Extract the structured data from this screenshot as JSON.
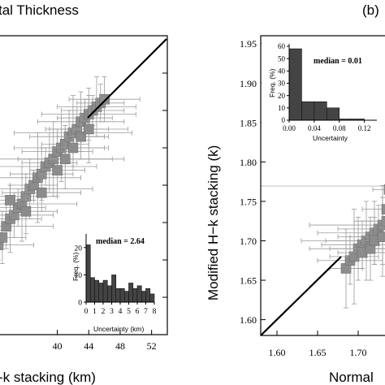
{
  "chart_data": [
    {
      "type": "scatter",
      "title": "tal Thickness",
      "xlabel": "-k stacking (km)",
      "ylabel": "",
      "xlim": [
        32.5,
        54
      ],
      "ylim": [
        15,
        55
      ],
      "xticks": [
        "40",
        "44",
        "48",
        "52"
      ],
      "xtick_values": [
        40,
        44,
        48,
        52
      ],
      "reference_line": "y = x",
      "grid": false,
      "points": [
        {
          "x": 32.5,
          "y": 27.0,
          "xerr": 4.5,
          "yerr": 2.0
        },
        {
          "x": 33.0,
          "y": 28.0,
          "xerr": 3.0,
          "yerr": 3.5
        },
        {
          "x": 33.5,
          "y": 29.5,
          "xerr": 6.0,
          "yerr": 3.0
        },
        {
          "x": 34.0,
          "y": 30.5,
          "xerr": 4.0,
          "yerr": 4.5
        },
        {
          "x": 34.5,
          "y": 31.0,
          "xerr": 5.0,
          "yerr": 3.0
        },
        {
          "x": 35.0,
          "y": 32.0,
          "xerr": 3.5,
          "yerr": 2.5
        },
        {
          "x": 35.5,
          "y": 32.5,
          "xerr": 7.0,
          "yerr": 5.0
        },
        {
          "x": 36.0,
          "y": 33.5,
          "xerr": 4.0,
          "yerr": 3.0
        },
        {
          "x": 36.5,
          "y": 34.5,
          "xerr": 8.0,
          "yerr": 4.0
        },
        {
          "x": 37.0,
          "y": 35.0,
          "xerr": 3.0,
          "yerr": 2.0
        },
        {
          "x": 37.5,
          "y": 36.0,
          "xerr": 5.5,
          "yerr": 6.0
        },
        {
          "x": 38.0,
          "y": 36.5,
          "xerr": 4.0,
          "yerr": 3.5
        },
        {
          "x": 38.5,
          "y": 37.5,
          "xerr": 6.5,
          "yerr": 2.5
        },
        {
          "x": 39.0,
          "y": 38.0,
          "xerr": 3.5,
          "yerr": 4.0
        },
        {
          "x": 39.5,
          "y": 38.5,
          "xerr": 9.0,
          "yerr": 5.0
        },
        {
          "x": 40.0,
          "y": 39.5,
          "xerr": 4.5,
          "yerr": 3.0
        },
        {
          "x": 40.5,
          "y": 40.0,
          "xerr": 6.0,
          "yerr": 4.5
        },
        {
          "x": 41.0,
          "y": 40.5,
          "xerr": 3.0,
          "yerr": 2.5
        },
        {
          "x": 41.5,
          "y": 41.5,
          "xerr": 5.0,
          "yerr": 3.5
        },
        {
          "x": 42.0,
          "y": 42.0,
          "xerr": 7.5,
          "yerr": 5.0
        },
        {
          "x": 42.5,
          "y": 42.5,
          "xerr": 4.0,
          "yerr": 3.0
        },
        {
          "x": 43.0,
          "y": 43.5,
          "xerr": 5.5,
          "yerr": 4.0
        },
        {
          "x": 43.5,
          "y": 44.0,
          "xerr": 3.5,
          "yerr": 2.5
        },
        {
          "x": 44.0,
          "y": 44.5,
          "xerr": 6.0,
          "yerr": 3.5
        },
        {
          "x": 44.5,
          "y": 45.0,
          "xerr": 4.0,
          "yerr": 2.0
        },
        {
          "x": 45.0,
          "y": 45.5,
          "xerr": 5.0,
          "yerr": 4.0
        },
        {
          "x": 45.5,
          "y": 46.0,
          "xerr": 3.0,
          "yerr": 2.5
        },
        {
          "x": 46.0,
          "y": 46.5,
          "xerr": 4.5,
          "yerr": 3.0
        },
        {
          "x": 34.0,
          "y": 33.0,
          "xerr": 3.0,
          "yerr": 2.0
        },
        {
          "x": 36.0,
          "y": 31.5,
          "xerr": 4.0,
          "yerr": 3.0
        },
        {
          "x": 38.0,
          "y": 34.0,
          "xerr": 5.0,
          "yerr": 2.5
        },
        {
          "x": 40.0,
          "y": 37.0,
          "xerr": 3.5,
          "yerr": 3.5
        },
        {
          "x": 41.0,
          "y": 38.5,
          "xerr": 6.0,
          "yerr": 4.0
        },
        {
          "x": 42.0,
          "y": 40.0,
          "xerr": 4.0,
          "yerr": 2.5
        },
        {
          "x": 43.0,
          "y": 41.5,
          "xerr": 3.0,
          "yerr": 3.0
        },
        {
          "x": 44.0,
          "y": 42.5,
          "xerr": 5.0,
          "yerr": 4.5
        }
      ],
      "inset": {
        "type": "bar",
        "ylabel": "Freq. (%)",
        "xlabel": "Uncertainty (km)",
        "annotation": "median = 2.64",
        "xticks": [
          "0",
          "1",
          "2",
          "3",
          "4",
          "5",
          "6",
          "7",
          "8"
        ],
        "yticks": [
          "0",
          "10",
          "20"
        ],
        "ylim": [
          0,
          25
        ],
        "bin_width": 0.5,
        "values": [
          21,
          9,
          8,
          7,
          8,
          6,
          10,
          5,
          5,
          4,
          7,
          5,
          6,
          4,
          5,
          3
        ]
      }
    },
    {
      "type": "scatter",
      "panel_label": "(b)",
      "title": "",
      "xlabel": "Normal",
      "ylabel": "Modified H−k stacking (k)",
      "xlim": [
        1.58,
        1.74
      ],
      "ylim": [
        1.58,
        1.96
      ],
      "xticks": [
        "1.60",
        "1.65",
        "1.70"
      ],
      "xtick_values": [
        1.6,
        1.65,
        1.7
      ],
      "yticks": [
        "1.60",
        "1.65",
        "1.70",
        "1.75",
        "1.80",
        "1.85",
        "1.90",
        "1.95"
      ],
      "ytick_values": [
        1.6,
        1.65,
        1.7,
        1.75,
        1.8,
        1.85,
        1.9,
        1.95
      ],
      "reference_line": "y = x",
      "hline": 1.77,
      "grid": false,
      "points": [
        {
          "x": 1.685,
          "y": 1.665,
          "xerr": 0.02,
          "yerr": 0.05
        },
        {
          "x": 1.69,
          "y": 1.675,
          "xerr": 0.04,
          "yerr": 0.03
        },
        {
          "x": 1.695,
          "y": 1.68,
          "xerr": 0.03,
          "yerr": 0.06
        },
        {
          "x": 1.7,
          "y": 1.69,
          "xerr": 0.06,
          "yerr": 0.04
        },
        {
          "x": 1.705,
          "y": 1.695,
          "xerr": 0.05,
          "yerr": 0.03
        },
        {
          "x": 1.71,
          "y": 1.7,
          "xerr": 0.08,
          "yerr": 0.05
        },
        {
          "x": 1.715,
          "y": 1.705,
          "xerr": 0.04,
          "yerr": 0.02
        },
        {
          "x": 1.72,
          "y": 1.71,
          "xerr": 0.07,
          "yerr": 0.04
        },
        {
          "x": 1.725,
          "y": 1.715,
          "xerr": 0.05,
          "yerr": 0.03
        },
        {
          "x": 1.73,
          "y": 1.72,
          "xerr": 0.09,
          "yerr": 0.05
        },
        {
          "x": 1.735,
          "y": 1.725,
          "xerr": 0.04,
          "yerr": 0.03
        },
        {
          "x": 1.705,
          "y": 1.685,
          "xerr": 0.03,
          "yerr": 0.02
        },
        {
          "x": 1.715,
          "y": 1.69,
          "xerr": 0.05,
          "yerr": 0.04
        },
        {
          "x": 1.72,
          "y": 1.7,
          "xerr": 0.06,
          "yerr": 0.03
        },
        {
          "x": 1.73,
          "y": 1.705,
          "xerr": 0.04,
          "yerr": 0.05
        },
        {
          "x": 1.735,
          "y": 1.74,
          "xerr": 0.03,
          "yerr": 0.02
        },
        {
          "x": 1.738,
          "y": 1.765,
          "xerr": 0.02,
          "yerr": 0.01
        }
      ],
      "inset": {
        "type": "bar",
        "ylabel": "Freq. (%)",
        "xlabel": "Uncertainty",
        "annotation": "median = 0.01",
        "xticks": [
          "0.00",
          "0.04",
          "0.08",
          "0.12"
        ],
        "yticks": [
          "0",
          "10",
          "20",
          "30",
          "40",
          "50",
          "60"
        ],
        "ylim": [
          0,
          62
        ],
        "bin_width": 0.02,
        "values": [
          58,
          15,
          15,
          10,
          1,
          1,
          0
        ]
      }
    }
  ]
}
